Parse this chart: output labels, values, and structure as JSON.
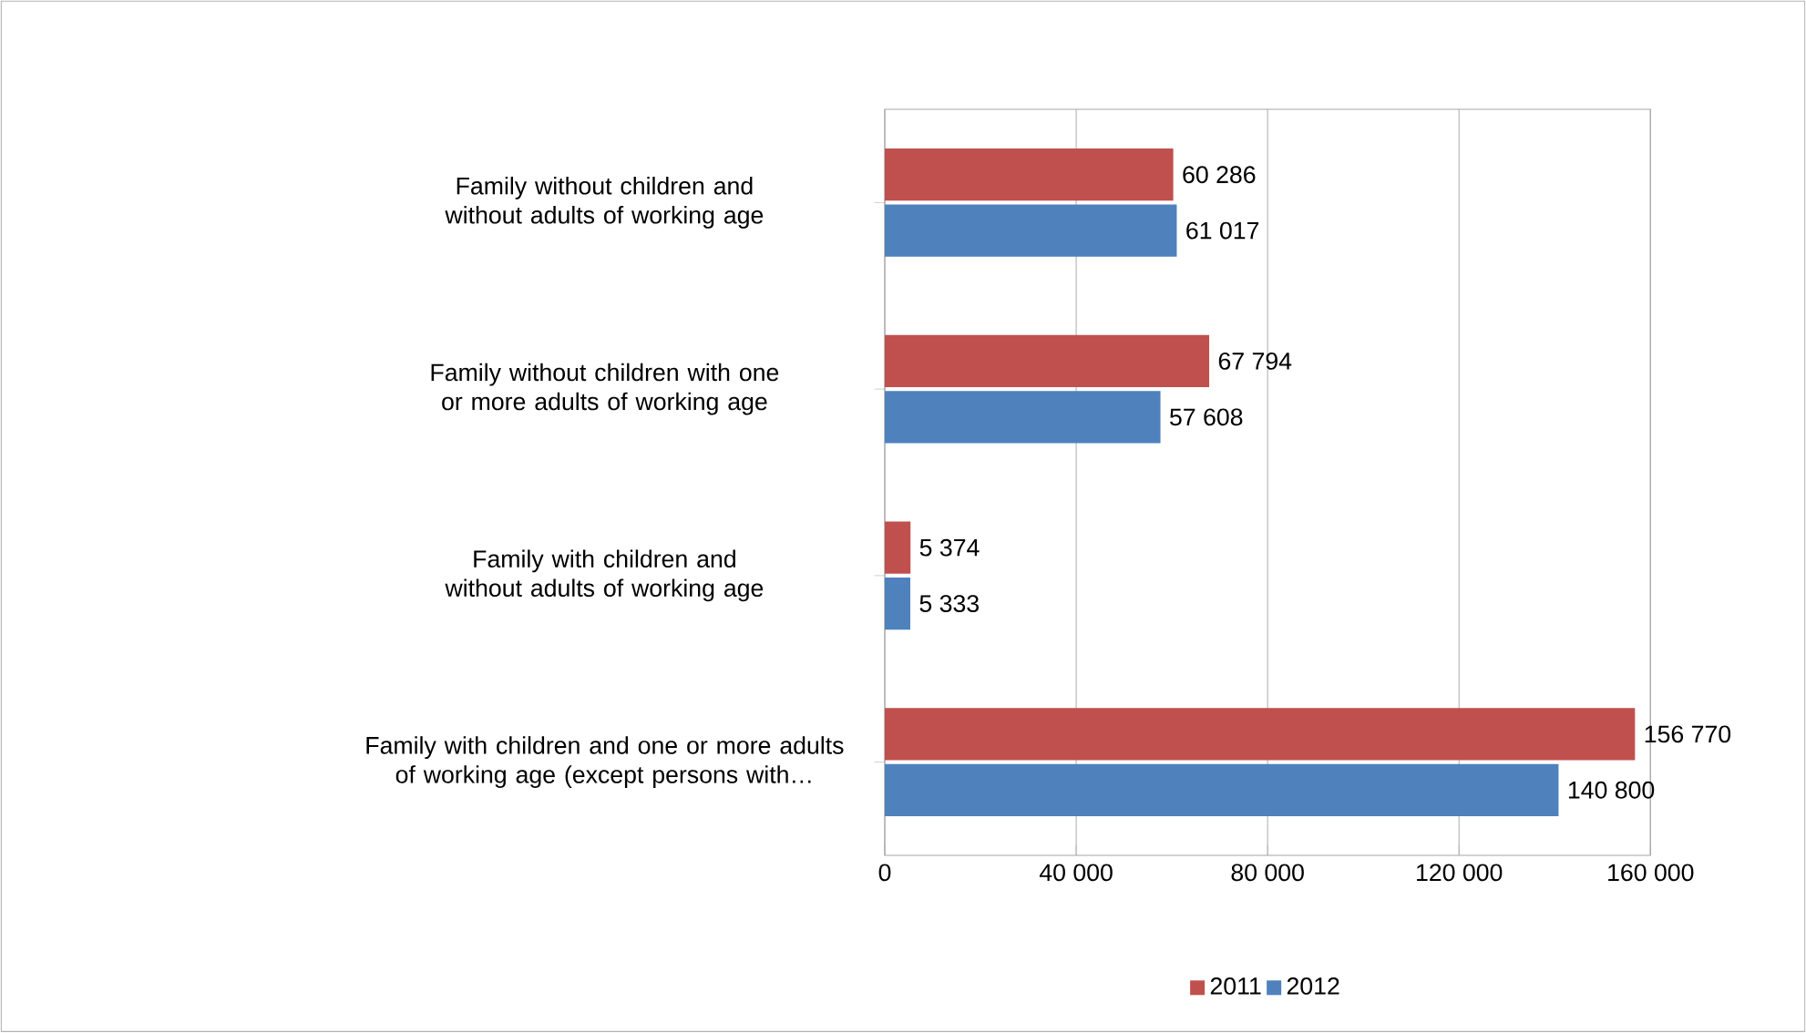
{
  "chart_data": {
    "type": "bar",
    "orientation": "horizontal",
    "categories": [
      "Family without children and without adults of working age",
      "Family without children with one or more adults of working age",
      "Family with children and without adults of working age",
      "Family with children and one or more adults of working age (except persons with…"
    ],
    "series": [
      {
        "name": "2011",
        "color": "#c0504d",
        "values": [
          60286,
          67794,
          5374,
          156770
        ],
        "value_labels": [
          "60 286",
          "67 794",
          "5 374",
          "156 770"
        ]
      },
      {
        "name": "2012",
        "color": "#4f81bd",
        "values": [
          61017,
          57608,
          5333,
          140800
        ],
        "value_labels": [
          "61 017",
          "57 608",
          "5 333",
          "140 800"
        ]
      }
    ],
    "xlim": [
      0,
      160000
    ],
    "xticks": [
      0,
      {
        "value": 40000,
        "label": "40 000"
      },
      {
        "value": 80000,
        "label": "80 000"
      },
      {
        "value": 120000,
        "label": "120 000"
      },
      {
        "value": 160000,
        "label": "160 000"
      }
    ],
    "grid": "x",
    "legend": "bottom"
  }
}
